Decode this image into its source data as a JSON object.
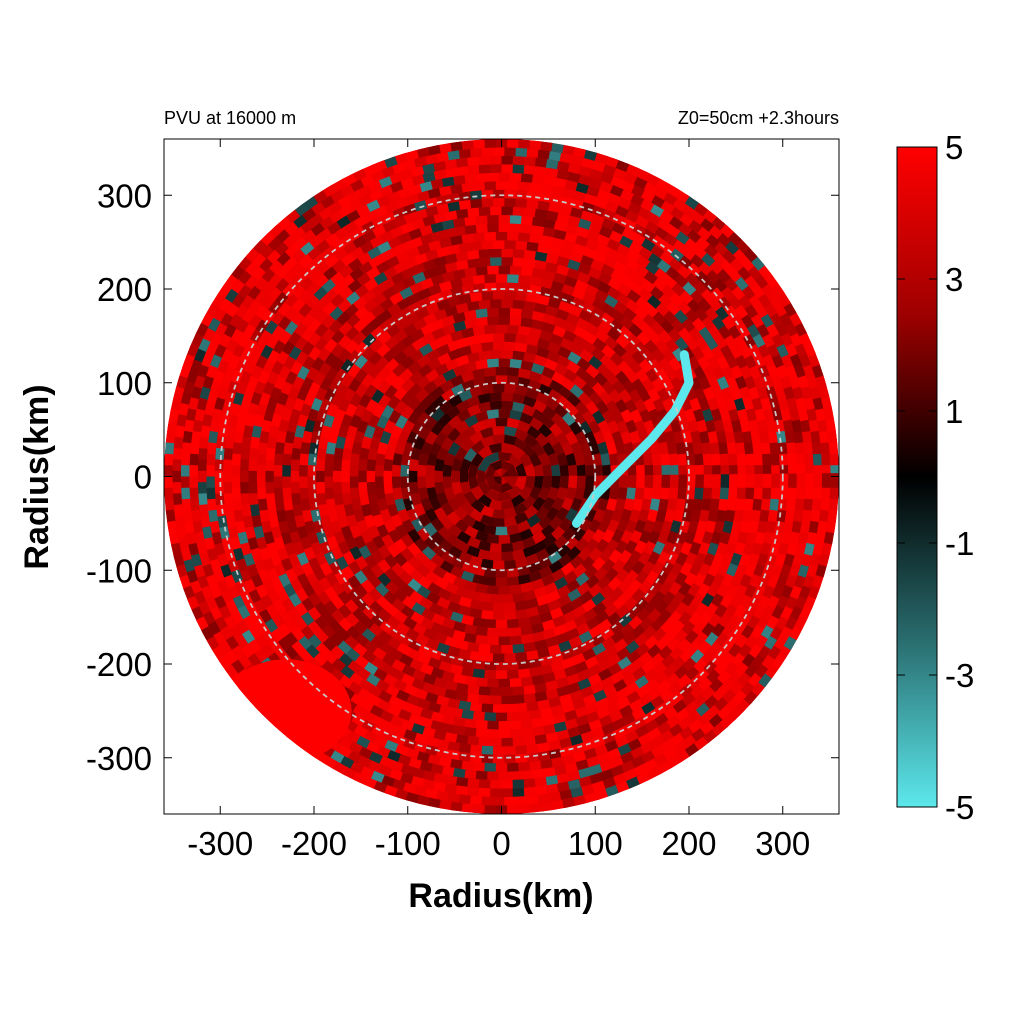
{
  "chart_data": {
    "type": "heatmap",
    "title_left": "PVU at 16000 m",
    "title_right": "Z0=50cm  +2.3hours",
    "xlabel": "Radius(km)",
    "ylabel": "Radius(km)",
    "xlim": [
      -360,
      360
    ],
    "ylim": [
      -360,
      360
    ],
    "x_ticks": [
      -300,
      -200,
      -100,
      0,
      100,
      200,
      300
    ],
    "y_ticks": [
      300,
      200,
      100,
      0,
      -100,
      -200,
      -300
    ],
    "domain_radius_km": 360,
    "reference_circle_radii_km": [
      100,
      200,
      300
    ],
    "colorbar": {
      "min": -5,
      "max": 5,
      "tick_labels": [
        5,
        3,
        1,
        -1,
        -3,
        -5
      ],
      "colors": [
        "#5ce8ec",
        "#000000",
        "#ff0000"
      ]
    },
    "features": [
      {
        "name": "cyan band",
        "value": -5,
        "points_km": [
          [
            80,
            -50
          ],
          [
            100,
            -20
          ],
          [
            130,
            10
          ],
          [
            160,
            40
          ],
          [
            185,
            70
          ],
          [
            200,
            100
          ],
          [
            195,
            130
          ]
        ]
      }
    ]
  }
}
